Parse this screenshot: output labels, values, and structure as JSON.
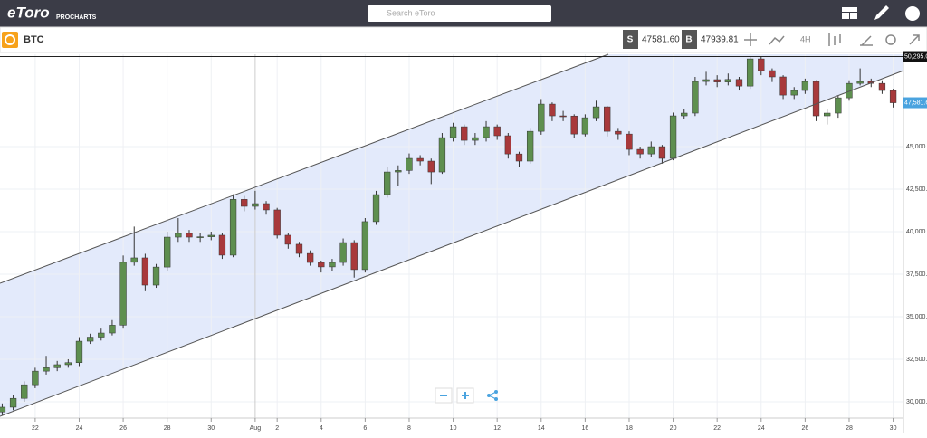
{
  "header": {
    "logo": "eToro",
    "product": "PROCHARTS",
    "search_placeholder": "Search eToro"
  },
  "toolbar": {
    "symbol": "BTC",
    "sell_label": "S",
    "sell_price": "47581.60",
    "buy_label": "B",
    "buy_price": "47939.81",
    "timeframe": "4H"
  },
  "chart_data": {
    "type": "candlestick",
    "x": [
      20.5,
      21,
      21.5,
      22,
      22.5,
      23,
      23.5,
      24,
      24.5,
      25,
      25.5,
      26,
      26.5,
      27,
      27.5,
      28,
      28.5,
      29,
      29.5,
      30,
      30.5,
      31,
      31.5,
      32,
      32.5,
      33,
      33.5,
      34,
      34.5,
      35,
      35.5,
      36,
      36.5,
      37,
      37.5,
      38,
      38.5,
      39,
      39.5,
      40,
      40.5,
      41,
      41.5,
      42,
      42.5,
      43,
      43.5,
      44,
      44.5,
      45,
      45.5,
      46,
      46.5,
      47,
      47.5,
      48,
      48.5,
      49,
      49.5,
      50,
      50.5,
      51,
      51.5,
      52,
      52.5,
      53,
      53.5,
      54,
      54.5,
      55,
      55.5,
      56,
      56.5,
      57,
      57.5,
      58,
      58.5,
      59,
      59.5,
      60,
      60.5,
      61
    ],
    "open": [
      29400,
      29680,
      30200,
      31000,
      31800,
      32000,
      32180,
      32300,
      33560,
      33800,
      34040,
      34500,
      38200,
      38460,
      36860,
      37920,
      39680,
      39900,
      39680,
      39700,
      39790,
      38620,
      41900,
      41490,
      41650,
      41280,
      39790,
      39260,
      38720,
      38190,
      37930,
      38190,
      39360,
      37770,
      40590,
      42180,
      43510,
      43600,
      44310,
      44150,
      43510,
      45530,
      46170,
      45370,
      45530,
      46170,
      45640,
      44570,
      44150,
      45900,
      47500,
      46810,
      46800,
      45740,
      46700,
      47340,
      45900,
      45740,
      44840,
      44570,
      45000,
      44310,
      46810,
      46970,
      48830,
      48940,
      48800,
      48950,
      48560,
      50160,
      49470,
      49100,
      48030,
      48300,
      48830,
      46810,
      46970,
      47870,
      48720,
      48830,
      48720,
      48300
    ],
    "high": [
      29900,
      30400,
      31200,
      32000,
      32700,
      32400,
      32500,
      33800,
      34000,
      34300,
      34800,
      38600,
      40300,
      38700,
      38100,
      40000,
      40800,
      40100,
      39900,
      40000,
      39900,
      42200,
      42100,
      42400,
      41800,
      41400,
      39900,
      39400,
      38900,
      38300,
      38400,
      39600,
      39500,
      40800,
      42400,
      43800,
      43900,
      44600,
      44500,
      44300,
      45800,
      46400,
      46300,
      45800,
      46500,
      46300,
      45800,
      44700,
      46100,
      47800,
      47600,
      47100,
      46900,
      46900,
      47700,
      47400,
      46100,
      45900,
      45000,
      45300,
      45100,
      47000,
      47200,
      49100,
      49400,
      49200,
      49300,
      49100,
      50300,
      50295,
      49600,
      49200,
      48500,
      49000,
      48900,
      47200,
      48000,
      48900,
      49600,
      49000,
      48900,
      48400
    ],
    "low": [
      29200,
      29500,
      30000,
      30800,
      31600,
      31800,
      32000,
      32100,
      33400,
      33600,
      33900,
      34300,
      38000,
      36500,
      36700,
      37700,
      39400,
      39400,
      39400,
      39500,
      38400,
      38500,
      41200,
      41300,
      41000,
      39600,
      39000,
      38500,
      38000,
      37600,
      37700,
      38000,
      37300,
      37600,
      40400,
      42000,
      42700,
      43400,
      43900,
      42800,
      43400,
      45300,
      45100,
      45100,
      45300,
      45400,
      44300,
      43800,
      44000,
      45700,
      46500,
      46500,
      45500,
      45600,
      46500,
      45600,
      45400,
      44500,
      44300,
      44400,
      44000,
      44200,
      46600,
      46800,
      48600,
      48500,
      48600,
      48300,
      48400,
      49200,
      48800,
      47800,
      47800,
      48100,
      46500,
      46300,
      46700,
      47700,
      48600,
      48500,
      48100,
      47300
    ],
    "close": [
      29680,
      30200,
      31000,
      31800,
      32000,
      32180,
      32300,
      33560,
      33800,
      34040,
      34500,
      38200,
      38460,
      36860,
      37920,
      39680,
      39900,
      39680,
      39700,
      39790,
      38620,
      41900,
      41490,
      41650,
      41280,
      39790,
      39260,
      38720,
      38190,
      37930,
      38190,
      39360,
      37770,
      40590,
      42180,
      43510,
      43600,
      44310,
      44150,
      43510,
      45530,
      46170,
      45370,
      45530,
      46170,
      45640,
      44570,
      44150,
      45900,
      47500,
      46810,
      46800,
      45740,
      46700,
      47340,
      45900,
      45740,
      44840,
      44570,
      45000,
      44310,
      46810,
      46970,
      48830,
      48940,
      48800,
      48950,
      48560,
      50160,
      49470,
      49100,
      48030,
      48300,
      48830,
      46810,
      46970,
      47870,
      48720,
      48830,
      48720,
      48300,
      47580
    ],
    "xlim": [
      20.4,
      61.47
    ],
    "ylim": [
      29040,
      50430
    ],
    "xticks": [
      22,
      24,
      26,
      28,
      30,
      {
        "value": 32,
        "label": "Aug"
      },
      {
        "value": 33,
        "label": "2"
      },
      {
        "value": 35,
        "label": "4"
      },
      {
        "value": 37,
        "label": "6"
      },
      {
        "value": 39,
        "label": "8"
      },
      {
        "value": 41,
        "label": "10"
      },
      {
        "value": 43,
        "label": "12"
      },
      {
        "value": 45,
        "label": "14"
      },
      {
        "value": 47,
        "label": "16"
      },
      {
        "value": 49,
        "label": "18"
      },
      {
        "value": 51,
        "label": "20"
      },
      {
        "value": 53,
        "label": "22"
      },
      {
        "value": 55,
        "label": "24"
      },
      {
        "value": 57,
        "label": "26"
      },
      {
        "value": 59,
        "label": "28"
      },
      {
        "value": 61,
        "label": "30"
      }
    ],
    "yticks": [
      {
        "value": 30000,
        "label": "30,000.0"
      },
      {
        "value": 32500,
        "label": "32,500.0"
      },
      {
        "value": 35000,
        "label": "35,000.0"
      },
      {
        "value": 37500,
        "label": "37,500.0"
      },
      {
        "value": 40000,
        "label": "40,000.0"
      },
      {
        "value": 42500,
        "label": "42,500.0"
      },
      {
        "value": 45000,
        "label": "45,000.0"
      }
    ],
    "grid": true,
    "up_color": "#5e8f4f",
    "down_color": "#a8393b",
    "price_labels": [
      {
        "value": 50295,
        "label": "50,295.0",
        "color": "#111111"
      },
      {
        "value": 47581.6,
        "label": "47,581.6",
        "color": "#4aa3df"
      }
    ]
  }
}
